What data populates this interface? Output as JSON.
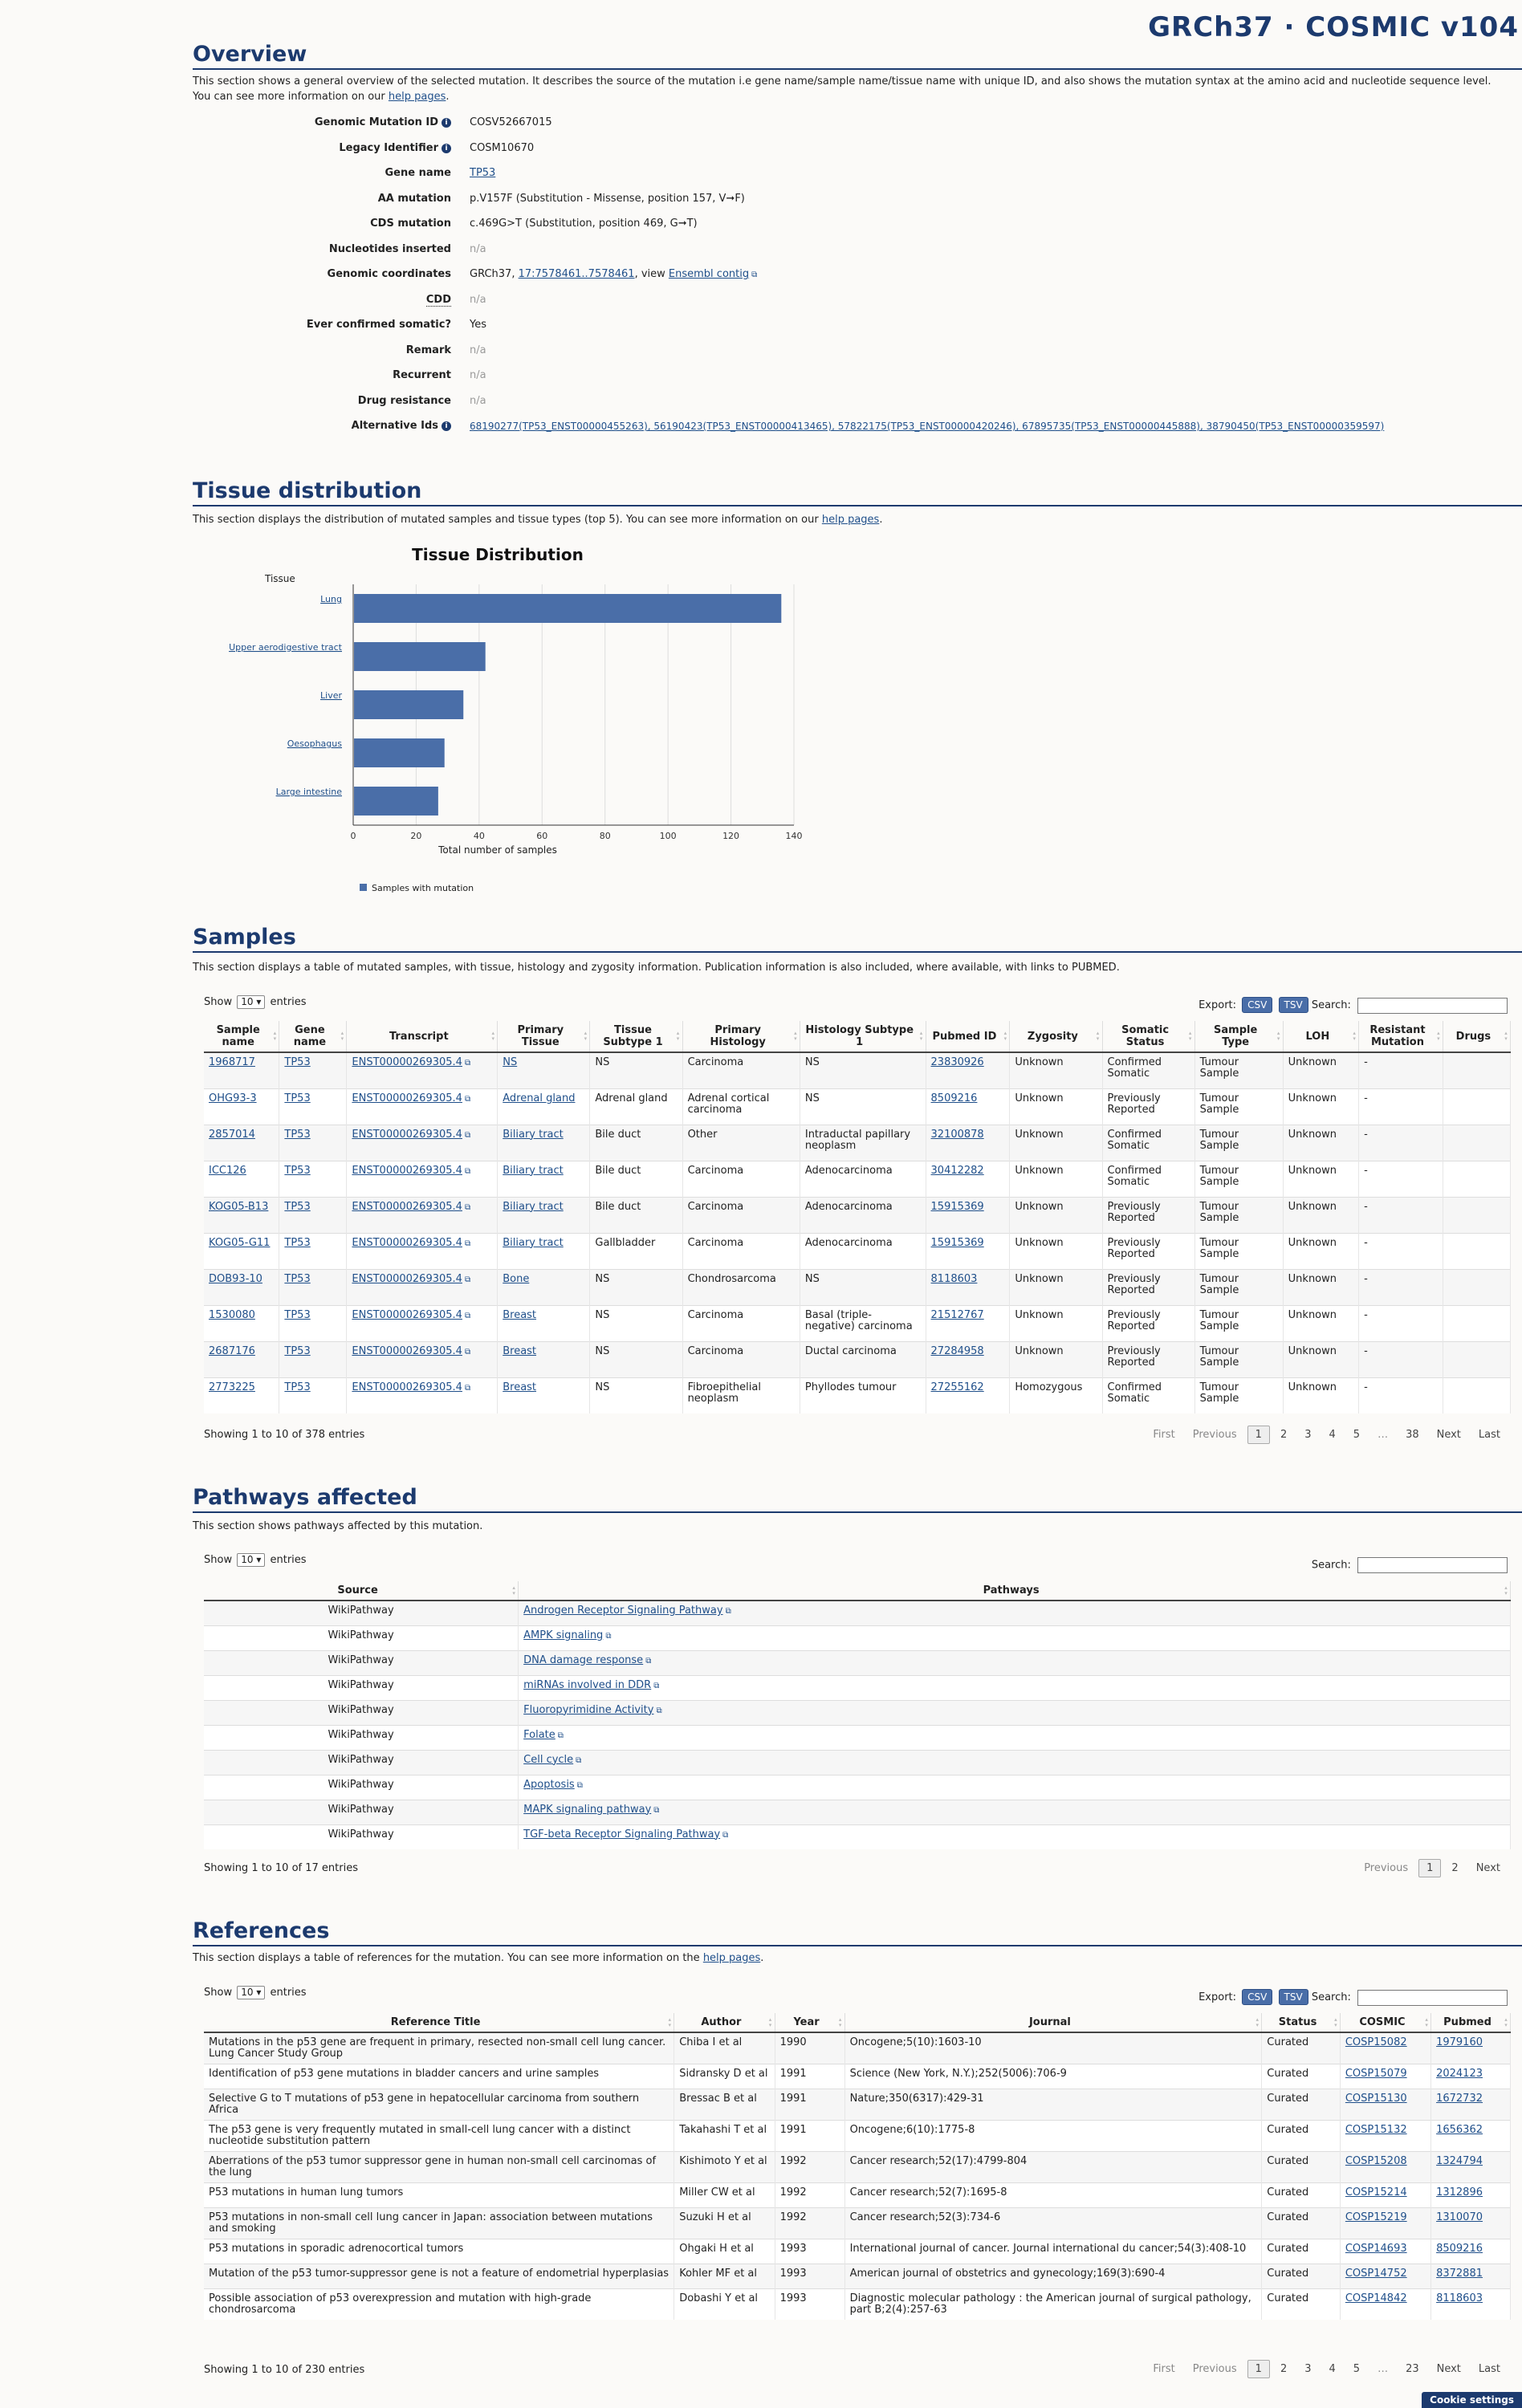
{
  "brand": "GRCh37 · COSMIC v104",
  "overview": {
    "title": "Overview",
    "description_pre": "This section shows a general overview of the selected mutation. It describes the source of the mutation i.e gene name/sample name/tissue name with unique ID, and also shows the mutation syntax at the amino acid and nucleotide sequence level. You can see more information on our ",
    "description_link": "help pages",
    "description_post": ".",
    "rows": [
      {
        "label": "Genomic Mutation ID",
        "value": "COSV52667015"
      },
      {
        "label": "Legacy Identifier",
        "value": "COSM10670"
      },
      {
        "label": "Gene name",
        "value": "TP53"
      },
      {
        "label": "AA mutation",
        "value": "p.V157F (Substitution - Missense, position 157, V➞F)"
      },
      {
        "label": "CDS mutation",
        "value": "c.469G>T (Substitution, position 469, G➞T)"
      },
      {
        "label": "Nucleotides inserted",
        "value": "n/a"
      },
      {
        "label": "Genomic coordinates",
        "value_pre": "GRCh37, ",
        "value_link": "17:7578461..7578461",
        "value_mid": ", view ",
        "value_link2": "Ensembl contig"
      },
      {
        "label": "CDD",
        "value": "n/a"
      },
      {
        "label": "Ever confirmed somatic?",
        "value": "Yes"
      },
      {
        "label": "Remark",
        "value": "n/a"
      },
      {
        "label": "Recurrent",
        "value": "n/a"
      },
      {
        "label": "Drug resistance",
        "value": "n/a"
      },
      {
        "label": "Alternative Ids",
        "value": "68190277(TP53_ENST00000455263), 56190423(TP53_ENST00000413465), 57822175(TP53_ENST00000420246), 67895735(TP53_ENST00000445888), 38790450(TP53_ENST00000359597)"
      }
    ]
  },
  "tissue": {
    "title": "Tissue distribution",
    "description_pre": "This section displays the distribution of mutated samples and tissue types (top 5). You can see more information on our ",
    "description_link": "help pages",
    "description_post": "."
  },
  "chart_data": {
    "type": "bar",
    "orientation": "horizontal",
    "title": "Tissue Distribution",
    "ylabel": "Tissue",
    "xlabel": "Total number of samples",
    "categories": [
      "Lung",
      "Upper aerodigestive tract",
      "Liver",
      "Oesophagus",
      "Large intestine"
    ],
    "series": [
      {
        "name": "Samples with mutation",
        "values": [
          136,
          42,
          35,
          29,
          27
        ]
      }
    ],
    "xlim": [
      0,
      140
    ],
    "xticks": [
      0,
      20,
      40,
      60,
      80,
      100,
      120,
      140
    ],
    "grid": true,
    "legend_position": "bottom-left",
    "bar_color": "#4a6ea8"
  },
  "samples": {
    "title": "Samples",
    "description": "This section displays a table of mutated samples, with tissue, histology and zygosity information. Publication information is also included, where available, with links to PUBMED.",
    "show_label": "Show",
    "show_value": "10",
    "entries_label": "entries",
    "export_label": "Export:",
    "csv": "CSV",
    "tsv": "TSV",
    "search_label": "Search:",
    "columns": [
      "Sample name",
      "Gene name",
      "Transcript",
      "Primary Tissue",
      "Tissue Subtype 1",
      "Primary Histology",
      "Histology Subtype 1",
      "Pubmed ID",
      "Zygosity",
      "Somatic Status",
      "Sample Type",
      "LOH",
      "Resistant Mutation",
      "Drugs"
    ],
    "rows": [
      [
        "1968717",
        "TP53",
        "ENST00000269305.4",
        "NS",
        "NS",
        "Carcinoma",
        "NS",
        "23830926",
        "Unknown",
        "Confirmed Somatic",
        "Tumour Sample",
        "Unknown",
        "-",
        ""
      ],
      [
        "OHG93-3",
        "TP53",
        "ENST00000269305.4",
        "Adrenal gland",
        "Adrenal gland",
        "Adrenal cortical carcinoma",
        "NS",
        "8509216",
        "Unknown",
        "Previously Reported",
        "Tumour Sample",
        "Unknown",
        "-",
        ""
      ],
      [
        "2857014",
        "TP53",
        "ENST00000269305.4",
        "Biliary tract",
        "Bile duct",
        "Other",
        "Intraductal papillary neoplasm",
        "32100878",
        "Unknown",
        "Confirmed Somatic",
        "Tumour Sample",
        "Unknown",
        "-",
        ""
      ],
      [
        "ICC126",
        "TP53",
        "ENST00000269305.4",
        "Biliary tract",
        "Bile duct",
        "Carcinoma",
        "Adenocarcinoma",
        "30412282",
        "Unknown",
        "Confirmed Somatic",
        "Tumour Sample",
        "Unknown",
        "-",
        ""
      ],
      [
        "KOG05-B13",
        "TP53",
        "ENST00000269305.4",
        "Biliary tract",
        "Bile duct",
        "Carcinoma",
        "Adenocarcinoma",
        "15915369",
        "Unknown",
        "Previously Reported",
        "Tumour Sample",
        "Unknown",
        "-",
        ""
      ],
      [
        "KOG05-G11",
        "TP53",
        "ENST00000269305.4",
        "Biliary tract",
        "Gallbladder",
        "Carcinoma",
        "Adenocarcinoma",
        "15915369",
        "Unknown",
        "Previously Reported",
        "Tumour Sample",
        "Unknown",
        "-",
        ""
      ],
      [
        "DOB93-10",
        "TP53",
        "ENST00000269305.4",
        "Bone",
        "NS",
        "Chondrosarcoma",
        "NS",
        "8118603",
        "Unknown",
        "Previously Reported",
        "Tumour Sample",
        "Unknown",
        "-",
        ""
      ],
      [
        "1530080",
        "TP53",
        "ENST00000269305.4",
        "Breast",
        "NS",
        "Carcinoma",
        "Basal (triple-negative) carcinoma",
        "21512767",
        "Unknown",
        "Previously Reported",
        "Tumour Sample",
        "Unknown",
        "-",
        ""
      ],
      [
        "2687176",
        "TP53",
        "ENST00000269305.4",
        "Breast",
        "NS",
        "Carcinoma",
        "Ductal carcinoma",
        "27284958",
        "Unknown",
        "Previously Reported",
        "Tumour Sample",
        "Unknown",
        "-",
        ""
      ],
      [
        "2773225",
        "TP53",
        "ENST00000269305.4",
        "Breast",
        "NS",
        "Fibroepithelial neoplasm",
        "Phyllodes tumour",
        "27255162",
        "Homozygous",
        "Confirmed Somatic",
        "Tumour Sample",
        "Unknown",
        "-",
        ""
      ]
    ],
    "info": "Showing 1 to 10 of 378 entries",
    "pager": [
      "First",
      "Previous",
      "1",
      "2",
      "3",
      "4",
      "5",
      "…",
      "38",
      "Next",
      "Last"
    ]
  },
  "pathways": {
    "title": "Pathways affected",
    "description": "This section shows pathways affected by this mutation.",
    "show_label": "Show",
    "show_value": "10",
    "entries_label": "entries",
    "search_label": "Search:",
    "columns": [
      "Source",
      "Pathways"
    ],
    "rows": [
      [
        "WikiPathway",
        "Androgen Receptor Signaling Pathway"
      ],
      [
        "WikiPathway",
        "AMPK signaling"
      ],
      [
        "WikiPathway",
        "DNA damage response"
      ],
      [
        "WikiPathway",
        "miRNAs involved in DDR"
      ],
      [
        "WikiPathway",
        "Fluoropyrimidine Activity"
      ],
      [
        "WikiPathway",
        "Folate"
      ],
      [
        "WikiPathway",
        "Cell cycle"
      ],
      [
        "WikiPathway",
        "Apoptosis"
      ],
      [
        "WikiPathway",
        "MAPK signaling pathway"
      ],
      [
        "WikiPathway",
        "TGF-beta Receptor Signaling Pathway"
      ]
    ],
    "info": "Showing 1 to 10 of 17 entries",
    "pager": [
      "Previous",
      "1",
      "2",
      "Next"
    ]
  },
  "references": {
    "title": "References",
    "description_pre": "This section displays a table of references for the mutation. You can see more information on the ",
    "description_link": "help pages",
    "description_post": ".",
    "show_label": "Show",
    "show_value": "10",
    "entries_label": "entries",
    "export_label": "Export:",
    "csv": "CSV",
    "tsv": "TSV",
    "search_label": "Search:",
    "columns": [
      "Reference Title",
      "Author",
      "Year",
      "Journal",
      "Status",
      "COSMIC",
      "Pubmed"
    ],
    "rows": [
      [
        "Mutations in the p53 gene are frequent in primary, resected non-small cell lung cancer. Lung Cancer Study Group",
        "Chiba I et al",
        "1990",
        "Oncogene;5(10):1603-10",
        "Curated",
        "COSP15082",
        "1979160"
      ],
      [
        "Identification of p53 gene mutations in bladder cancers and urine samples",
        "Sidransky D et al",
        "1991",
        "Science (New York, N.Y.);252(5006):706-9",
        "Curated",
        "COSP15079",
        "2024123"
      ],
      [
        "Selective G to T mutations of p53 gene in hepatocellular carcinoma from southern Africa",
        "Bressac B et al",
        "1991",
        "Nature;350(6317):429-31",
        "Curated",
        "COSP15130",
        "1672732"
      ],
      [
        "The p53 gene is very frequently mutated in small-cell lung cancer with a distinct nucleotide substitution pattern",
        "Takahashi T et al",
        "1991",
        "Oncogene;6(10):1775-8",
        "Curated",
        "COSP15132",
        "1656362"
      ],
      [
        "Aberrations of the p53 tumor suppressor gene in human non-small cell carcinomas of the lung",
        "Kishimoto Y et al",
        "1992",
        "Cancer research;52(17):4799-804",
        "Curated",
        "COSP15208",
        "1324794"
      ],
      [
        "P53 mutations in human lung tumors",
        "Miller CW et al",
        "1992",
        "Cancer research;52(7):1695-8",
        "Curated",
        "COSP15214",
        "1312896"
      ],
      [
        "P53 mutations in non-small cell lung cancer in Japan: association between mutations and smoking",
        "Suzuki H et al",
        "1992",
        "Cancer research;52(3):734-6",
        "Curated",
        "COSP15219",
        "1310070"
      ],
      [
        "P53 mutations in sporadic adrenocortical tumors",
        "Ohgaki H et al",
        "1993",
        "International journal of cancer. Journal international du cancer;54(3):408-10",
        "Curated",
        "COSP14693",
        "8509216"
      ],
      [
        "Mutation of the p53 tumor-suppressor gene is not a feature of endometrial hyperplasias",
        "Kohler MF et al",
        "1993",
        "American journal of obstetrics and gynecology;169(3):690-4",
        "Curated",
        "COSP14752",
        "8372881"
      ],
      [
        "Possible association of p53 overexpression and mutation with high-grade chondrosarcoma",
        "Dobashi Y et al",
        "1993",
        "Diagnostic molecular pathology : the American journal of surgical pathology, part B;2(4):257-63",
        "Curated",
        "COSP14842",
        "8118603"
      ]
    ],
    "info": "Showing 1 to 10 of 230 entries",
    "pager": [
      "First",
      "Previous",
      "1",
      "2",
      "3",
      "4",
      "5",
      "…",
      "23",
      "Next",
      "Last"
    ]
  },
  "cookie": "Cookie settings"
}
